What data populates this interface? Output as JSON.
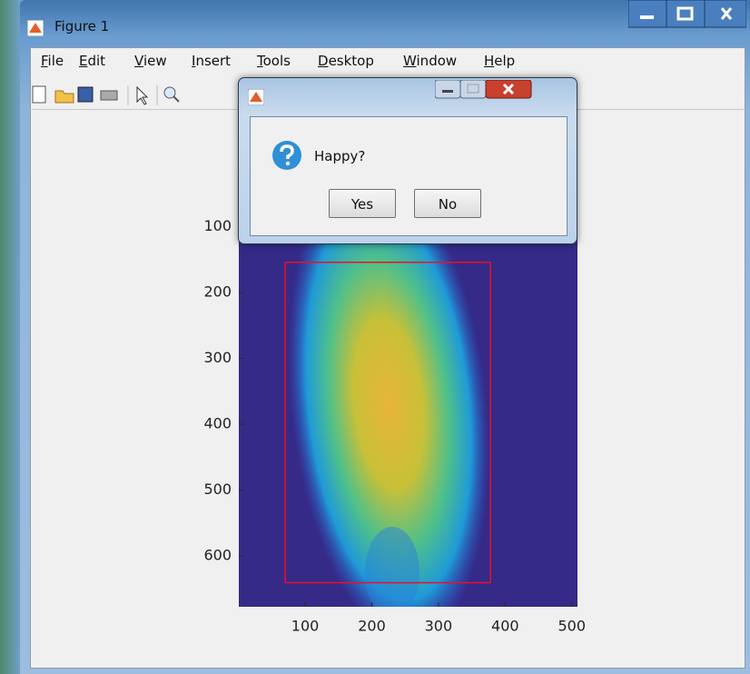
{
  "window": {
    "title": "Figure 1",
    "menu": [
      "File",
      "Edit",
      "View",
      "Insert",
      "Tools",
      "Desktop",
      "Window",
      "Help"
    ]
  },
  "dialog": {
    "message": "Happy?",
    "buttons": [
      "Yes",
      "No"
    ]
  },
  "axes": {
    "xlim": [
      0.5,
      508.5
    ],
    "ylim": [
      0.5,
      677.5
    ],
    "y_reversed": true,
    "xticks": [
      100,
      200,
      300,
      400,
      500
    ],
    "yticks": [
      100,
      200,
      300,
      400,
      500,
      600
    ],
    "background": "#352a87",
    "roi": {
      "x": [
        70,
        378
      ],
      "y": [
        154,
        641
      ],
      "color": "#e8102a"
    }
  }
}
